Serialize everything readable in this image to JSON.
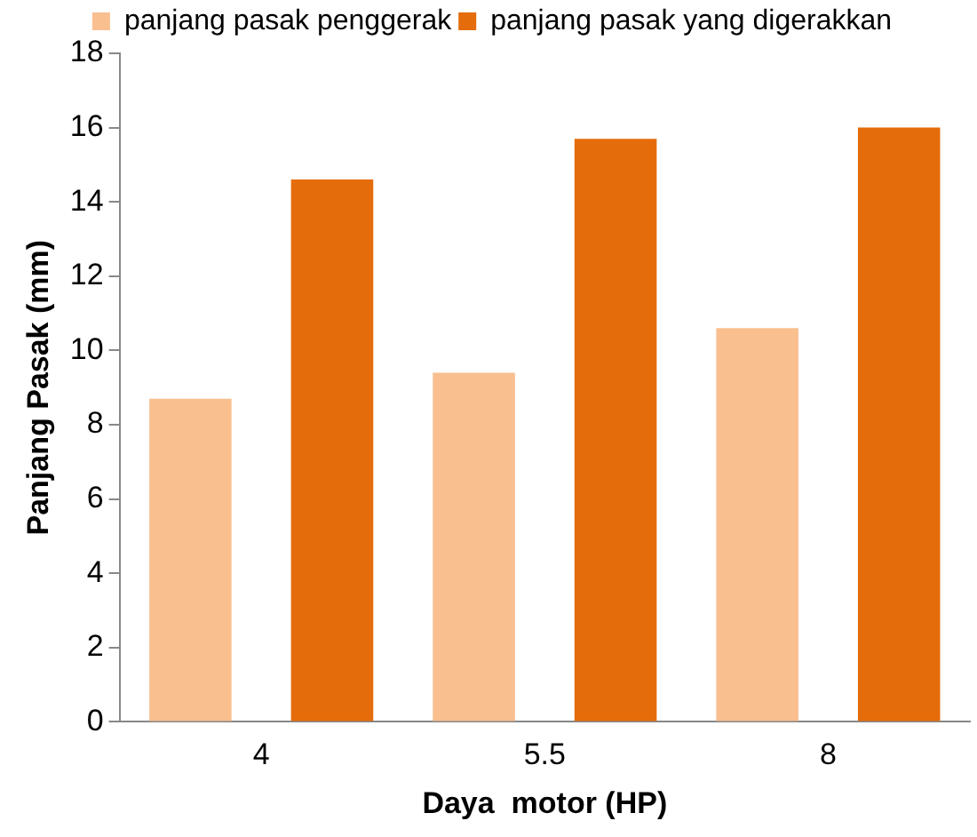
{
  "chart_data": {
    "type": "bar",
    "xlabel": "Daya  motor (HP)",
    "ylabel": "Panjang Pasak (mm)",
    "categories": [
      "4",
      "5.5",
      "8"
    ],
    "series": [
      {
        "name": "panjang pasak penggerak",
        "color": "#f9bf8f",
        "values": [
          8.7,
          9.4,
          10.6
        ]
      },
      {
        "name": "panjang pasak yang digerakkan",
        "color": "#e46c0a",
        "values": [
          14.6,
          15.7,
          16.0
        ]
      }
    ],
    "ylim": [
      0,
      18
    ],
    "yticks": [
      0,
      2,
      4,
      6,
      8,
      10,
      12,
      14,
      16,
      18
    ],
    "grid": false,
    "legend": "top"
  }
}
